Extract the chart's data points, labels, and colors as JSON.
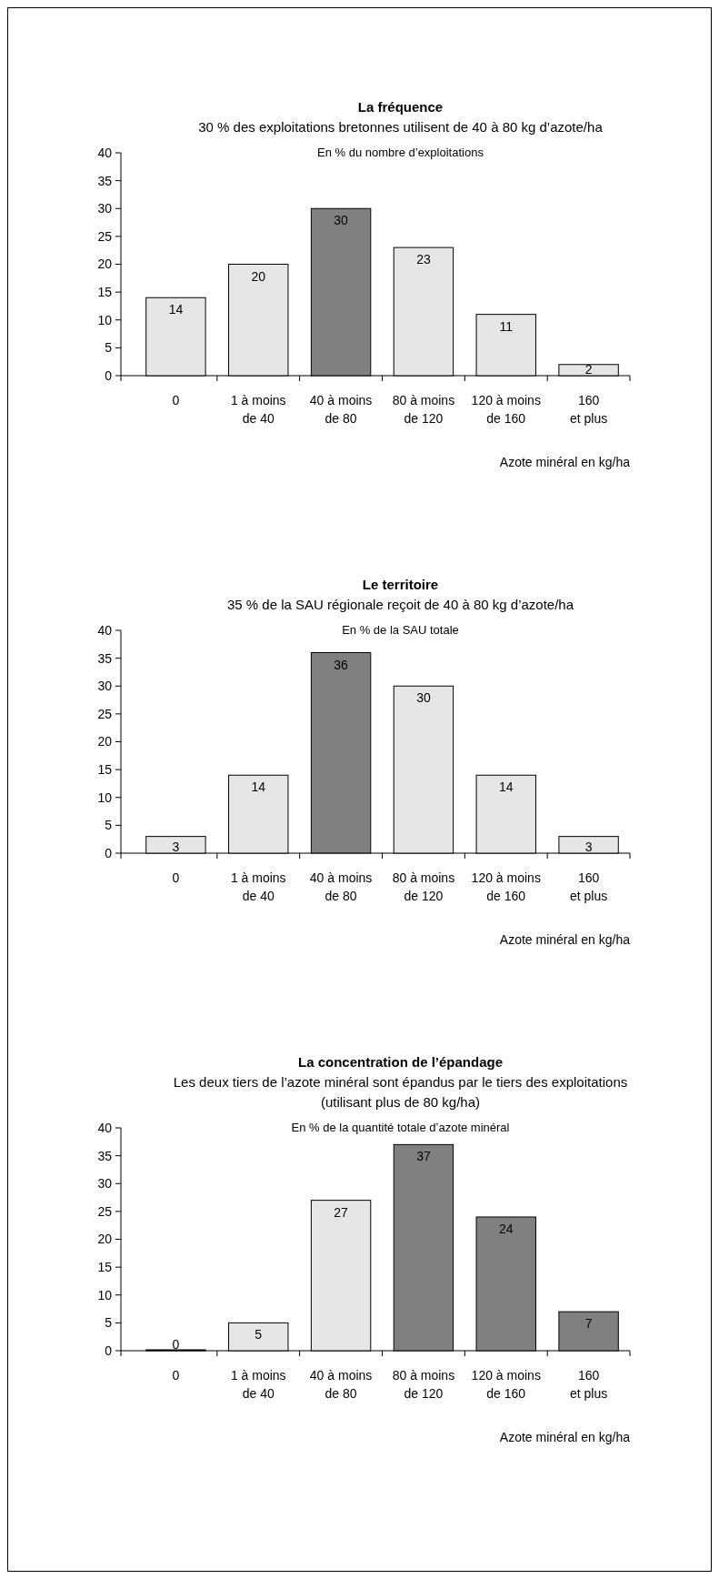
{
  "chart_data": [
    {
      "type": "bar",
      "title": "La fréquence",
      "subtitle": "30 % des exploitations bretonnes utilisent de 40 à 80 kg d’azote/ha",
      "ylabel": "En % du nombre d’exploitations",
      "xlabel": "Azote minéral en kg/ha",
      "categories": [
        "0",
        "1 à moins\nde 40",
        "40 à moins\nde 80",
        "80 à moins\nde 120",
        "120 à moins\nde 160",
        "160\net plus"
      ],
      "values": [
        14,
        20,
        30,
        23,
        11,
        2
      ],
      "colors": [
        "#e6e6e6",
        "#e6e6e6",
        "#808080",
        "#e6e6e6",
        "#e6e6e6",
        "#e6e6e6"
      ],
      "ylim": [
        0,
        40
      ],
      "yticks": [
        0,
        5,
        10,
        15,
        20,
        25,
        30,
        35,
        40
      ],
      "data_labels": true
    },
    {
      "type": "bar",
      "title": "Le territoire",
      "subtitle": "35 % de la SAU régionale reçoit de 40 à 80 kg d’azote/ha",
      "ylabel": "En % de la SAU totale",
      "xlabel": "Azote minéral en kg/ha",
      "categories": [
        "0",
        "1 à moins\nde 40",
        "40 à moins\nde 80",
        "80 à moins\nde 120",
        "120 à moins\nde 160",
        "160\net plus"
      ],
      "values": [
        3,
        14,
        36,
        30,
        14,
        3
      ],
      "colors": [
        "#e6e6e6",
        "#e6e6e6",
        "#808080",
        "#e6e6e6",
        "#e6e6e6",
        "#e6e6e6"
      ],
      "ylim": [
        0,
        40
      ],
      "yticks": [
        0,
        5,
        10,
        15,
        20,
        25,
        30,
        35,
        40
      ],
      "data_labels": true
    },
    {
      "type": "bar",
      "title": "La concentration de l’épandage",
      "subtitle": "Les deux tiers de l’azote minéral sont épandus par le tiers des exploitations\n(utilisant plus de 80 kg/ha)",
      "ylabel": "En % de la quantité totale d’azote minéral",
      "xlabel": "Azote minéral en kg/ha",
      "categories": [
        "0",
        "1 à moins\nde 40",
        "40 à moins\nde 80",
        "80 à moins\nde 120",
        "120 à moins\nde 160",
        "160\net plus"
      ],
      "values": [
        0,
        5,
        27,
        37,
        24,
        7
      ],
      "colors": [
        "#e6e6e6",
        "#e6e6e6",
        "#e6e6e6",
        "#808080",
        "#808080",
        "#808080"
      ],
      "ylim": [
        0,
        40
      ],
      "yticks": [
        0,
        5,
        10,
        15,
        20,
        25,
        30,
        35,
        40
      ],
      "data_labels": true
    }
  ]
}
